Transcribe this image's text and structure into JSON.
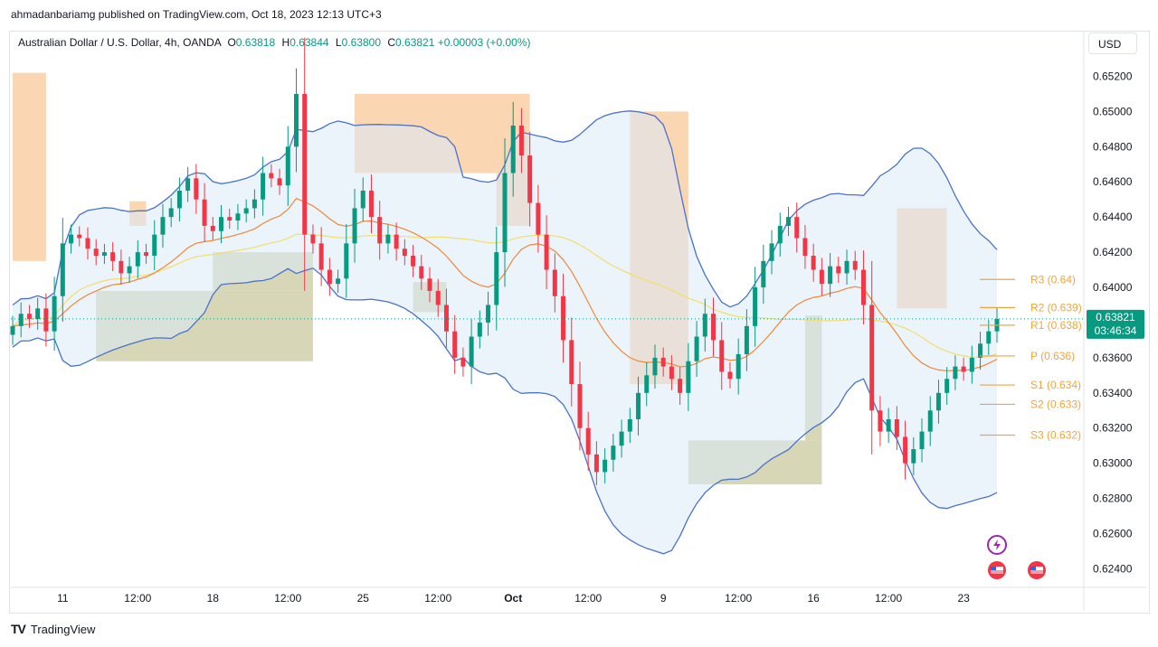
{
  "publisher_line": "ahmadanbariamg published on TradingView.com, Oct 18, 2023 12:13 UTC+3",
  "legend": {
    "symbol": "Australian Dollar / U.S. Dollar, 4h, OANDA",
    "o_label": "O",
    "o_value": "0.63818",
    "h_label": "H",
    "h_value": "0.63844",
    "l_label": "L",
    "l_value": "0.63800",
    "c_label": "C",
    "c_value": "0.63821",
    "change": "+0.00003 (+0.00%)"
  },
  "currency_button": "USD",
  "price_label": {
    "price": "0.63821",
    "countdown": "03:46:34"
  },
  "footer_brand": "TradingView",
  "icons": [
    "lightning-icon",
    "us-flag-icon"
  ],
  "colors": {
    "up": "#089981",
    "down": "#f23645",
    "bb": "#4a72c9",
    "ema": "#f0883a",
    "sma": "#f3de6c",
    "supply": "#f9c89a",
    "demand": "#c9c9a0",
    "pivot": "#f0a540"
  },
  "chart_data": {
    "type": "candlestick",
    "symbol": "AUDUSD",
    "timeframe": "4h",
    "ylim": [
      0.6232,
      0.653
    ],
    "y_ticks": [
      "0.65200",
      "0.65000",
      "0.64800",
      "0.64600",
      "0.64400",
      "0.64200",
      "0.64000",
      "0.63800",
      "0.63600",
      "0.63400",
      "0.63200",
      "0.63000",
      "0.62800",
      "0.62600",
      "0.62400"
    ],
    "x_ticks": [
      {
        "i": 6,
        "label": "11"
      },
      {
        "i": 15,
        "label": "12:00"
      },
      {
        "i": 24,
        "label": "18"
      },
      {
        "i": 33,
        "label": "12:00"
      },
      {
        "i": 42,
        "label": "25"
      },
      {
        "i": 51,
        "label": "12:00"
      },
      {
        "i": 60,
        "label": "Oct"
      },
      {
        "i": 69,
        "label": "12:00"
      },
      {
        "i": 78,
        "label": "9"
      },
      {
        "i": 87,
        "label": "12:00"
      },
      {
        "i": 96,
        "label": "16"
      },
      {
        "i": 105,
        "label": "12:00"
      },
      {
        "i": 114,
        "label": "23"
      }
    ],
    "closes": [
      0.6378,
      0.6385,
      0.6382,
      0.6388,
      0.6375,
      0.6395,
      0.6425,
      0.643,
      0.6428,
      0.6422,
      0.6418,
      0.642,
      0.6415,
      0.6408,
      0.6412,
      0.642,
      0.6418,
      0.643,
      0.644,
      0.6445,
      0.6455,
      0.6462,
      0.645,
      0.6435,
      0.6432,
      0.644,
      0.6438,
      0.6442,
      0.6445,
      0.645,
      0.6465,
      0.6462,
      0.6458,
      0.648,
      0.651,
      0.643,
      0.6425,
      0.641,
      0.6402,
      0.6405,
      0.6425,
      0.6445,
      0.6455,
      0.644,
      0.6425,
      0.643,
      0.6422,
      0.6418,
      0.6412,
      0.6405,
      0.6398,
      0.639,
      0.6375,
      0.636,
      0.6355,
      0.6372,
      0.638,
      0.639,
      0.642,
      0.6465,
      0.6492,
      0.6475,
      0.6448,
      0.643,
      0.641,
      0.6395,
      0.637,
      0.6345,
      0.632,
      0.6305,
      0.6295,
      0.6302,
      0.631,
      0.6318,
      0.6325,
      0.634,
      0.635,
      0.636,
      0.6355,
      0.6348,
      0.634,
      0.6358,
      0.6372,
      0.6385,
      0.637,
      0.6352,
      0.6348,
      0.6362,
      0.6378,
      0.64,
      0.6415,
      0.6425,
      0.6435,
      0.644,
      0.6428,
      0.6418,
      0.641,
      0.6402,
      0.6412,
      0.6408,
      0.6415,
      0.641,
      0.639,
      0.633,
      0.6318,
      0.6325,
      0.6315,
      0.63,
      0.6308,
      0.6318,
      0.633,
      0.634,
      0.6348,
      0.6355,
      0.6352,
      0.636,
      0.6368,
      0.6375,
      0.6382
    ],
    "pivots": [
      {
        "label": "R3 (0.64)",
        "value": 0.64045
      },
      {
        "label": "R2 (0.639)",
        "value": 0.63885
      },
      {
        "label": "R1 (0.638)",
        "value": 0.63785
      },
      {
        "label": "P (0.636)",
        "value": 0.6361
      },
      {
        "label": "S1 (0.634)",
        "value": 0.63445
      },
      {
        "label": "S2 (0.633)",
        "value": 0.63335
      },
      {
        "label": "S3 (0.632)",
        "value": 0.6316
      }
    ],
    "supply_zones": [
      {
        "i0": 0,
        "i1": 4,
        "y0": 0.6522,
        "y1": 0.6415
      },
      {
        "i0": 14,
        "i1": 16,
        "y0": 0.6449,
        "y1": 0.6435
      },
      {
        "i0": 41,
        "i1": 62,
        "y0": 0.651,
        "y1": 0.6465
      },
      {
        "i0": 58,
        "i1": 62,
        "y0": 0.6465,
        "y1": 0.6435
      },
      {
        "i0": 74,
        "i1": 81,
        "y0": 0.65,
        "y1": 0.6345
      },
      {
        "i0": 106,
        "i1": 112,
        "y0": 0.6445,
        "y1": 0.6388
      }
    ],
    "demand_zones": [
      {
        "i0": 10,
        "i1": 36,
        "y0": 0.6398,
        "y1": 0.6358
      },
      {
        "i0": 24,
        "i1": 36,
        "y0": 0.642,
        "y1": 0.6398
      },
      {
        "i0": 48,
        "i1": 52,
        "y0": 0.6403,
        "y1": 0.6386
      },
      {
        "i0": 81,
        "i1": 97,
        "y0": 0.6313,
        "y1": 0.6288
      },
      {
        "i0": 95,
        "i1": 97,
        "y0": 0.6384,
        "y1": 0.6313
      }
    ]
  }
}
